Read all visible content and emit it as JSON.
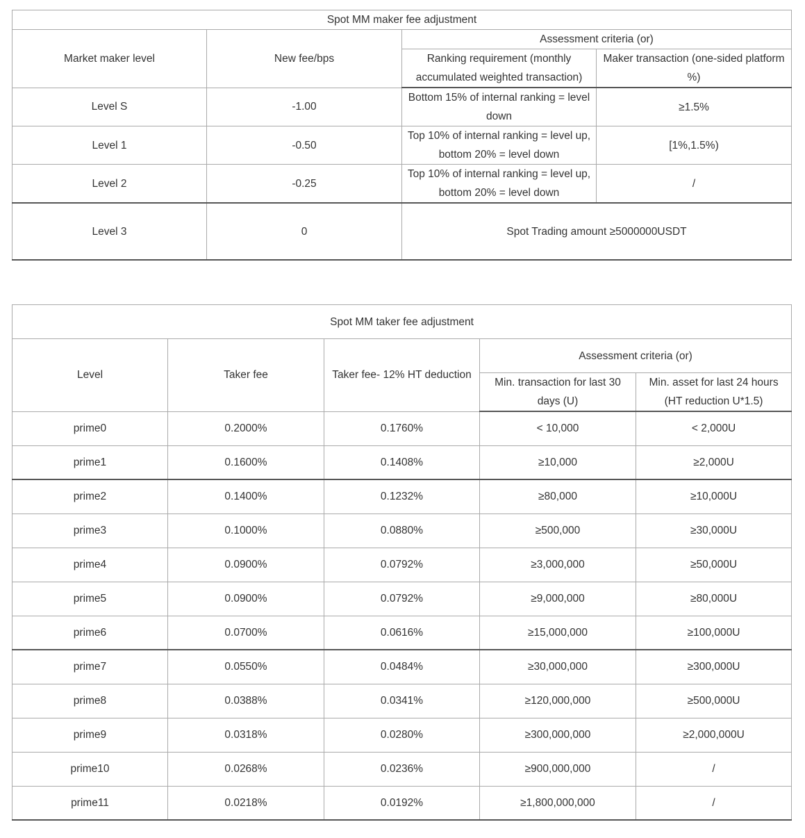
{
  "maker_table": {
    "title": "Spot MM maker fee adjustment",
    "headers": {
      "level": "Market maker level",
      "fee": "New fee/bps",
      "criteria": "Assessment criteria (or)",
      "ranking": "Ranking requirement (monthly accumulated weighted transaction)",
      "maker": "Maker transaction (one-sided platform %)"
    },
    "rows": [
      {
        "level": "Level S",
        "fee": "-1.00",
        "ranking": "Bottom 15% of internal ranking = level down",
        "maker": "≥1.5%"
      },
      {
        "level": "Level 1",
        "fee": "-0.50",
        "ranking": "Top 10% of internal ranking = level up, bottom 20% = level down",
        "maker": "[1%,1.5%)"
      },
      {
        "level": "Level 2",
        "fee": "-0.25",
        "ranking": "Top 10% of internal ranking = level up, bottom 20% = level down",
        "maker": "/"
      }
    ],
    "last_row": {
      "level": "Level 3",
      "fee": "0",
      "criteria": "Spot Trading amount ≥5000000USDT"
    }
  },
  "taker_table": {
    "title": "Spot MM taker fee adjustment",
    "headers": {
      "level": "Level",
      "taker_fee": "Taker fee",
      "deduction": "Taker fee- 12% HT deduction",
      "criteria": "Assessment criteria (or)",
      "min_tx": "Min. transaction for last 30 days (U)",
      "min_asset": "Min. asset for last 24 hours (HT reduction U*1.5)"
    },
    "rows": [
      [
        "prime0",
        "0.2000%",
        "0.1760%",
        "< 10,000",
        "< 2,000U"
      ],
      [
        "prime1",
        "0.1600%",
        "0.1408%",
        "≥10,000",
        "≥2,000U"
      ],
      [
        "prime2",
        "0.1400%",
        "0.1232%",
        "≥80,000",
        "≥10,000U"
      ],
      [
        "prime3",
        "0.1000%",
        "0.0880%",
        "≥500,000",
        "≥30,000U"
      ],
      [
        "prime4",
        "0.0900%",
        "0.0792%",
        "≥3,000,000",
        "≥50,000U"
      ],
      [
        "prime5",
        "0.0900%",
        "0.0792%",
        "≥9,000,000",
        "≥80,000U"
      ],
      [
        "prime6",
        "0.0700%",
        "0.0616%",
        "≥15,000,000",
        "≥100,000U"
      ],
      [
        "prime7",
        "0.0550%",
        "0.0484%",
        "≥30,000,000",
        "≥300,000U"
      ],
      [
        "prime8",
        "0.0388%",
        "0.0341%",
        "≥120,000,000",
        "≥500,000U"
      ],
      [
        "prime9",
        "0.0318%",
        "0.0280%",
        "≥300,000,000",
        "≥2,000,000U"
      ],
      [
        "prime10",
        "0.0268%",
        "0.0236%",
        "≥900,000,000",
        "/"
      ],
      [
        "prime11",
        "0.0218%",
        "0.0192%",
        "≥1,800,000,000",
        "/"
      ]
    ]
  }
}
